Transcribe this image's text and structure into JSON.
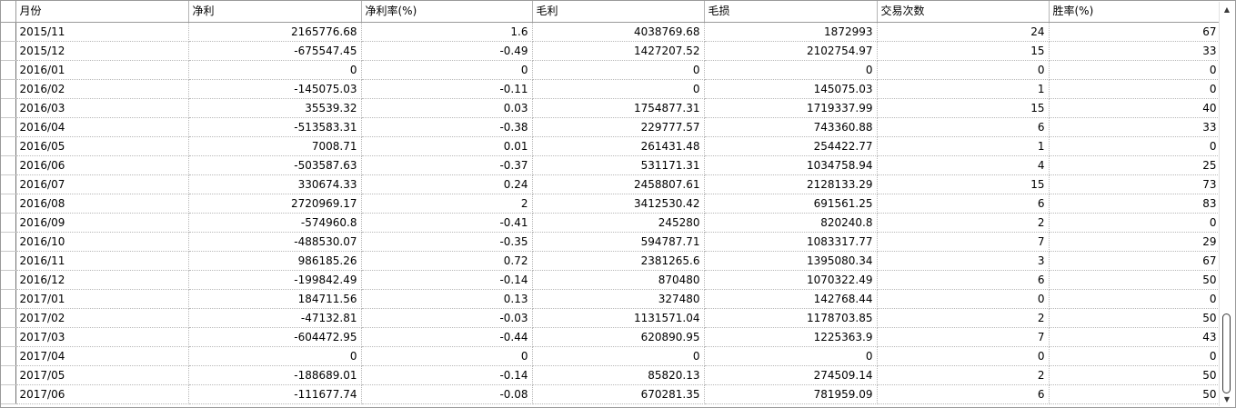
{
  "table": {
    "columns": [
      "月份",
      "净利",
      "净利率(%)",
      "毛利",
      "毛损",
      "交易次数",
      "胜率(%)"
    ],
    "rows": [
      [
        "2015/11",
        "2165776.68",
        "1.6",
        "4038769.68",
        "1872993",
        "24",
        "67"
      ],
      [
        "2015/12",
        "-675547.45",
        "-0.49",
        "1427207.52",
        "2102754.97",
        "15",
        "33"
      ],
      [
        "2016/01",
        "0",
        "0",
        "0",
        "0",
        "0",
        "0"
      ],
      [
        "2016/02",
        "-145075.03",
        "-0.11",
        "0",
        "145075.03",
        "1",
        "0"
      ],
      [
        "2016/03",
        "35539.32",
        "0.03",
        "1754877.31",
        "1719337.99",
        "15",
        "40"
      ],
      [
        "2016/04",
        "-513583.31",
        "-0.38",
        "229777.57",
        "743360.88",
        "6",
        "33"
      ],
      [
        "2016/05",
        "7008.71",
        "0.01",
        "261431.48",
        "254422.77",
        "1",
        "0"
      ],
      [
        "2016/06",
        "-503587.63",
        "-0.37",
        "531171.31",
        "1034758.94",
        "4",
        "25"
      ],
      [
        "2016/07",
        "330674.33",
        "0.24",
        "2458807.61",
        "2128133.29",
        "15",
        "73"
      ],
      [
        "2016/08",
        "2720969.17",
        "2",
        "3412530.42",
        "691561.25",
        "6",
        "83"
      ],
      [
        "2016/09",
        "-574960.8",
        "-0.41",
        "245280",
        "820240.8",
        "2",
        "0"
      ],
      [
        "2016/10",
        "-488530.07",
        "-0.35",
        "594787.71",
        "1083317.77",
        "7",
        "29"
      ],
      [
        "2016/11",
        "986185.26",
        "0.72",
        "2381265.6",
        "1395080.34",
        "3",
        "67"
      ],
      [
        "2016/12",
        "-199842.49",
        "-0.14",
        "870480",
        "1070322.49",
        "6",
        "50"
      ],
      [
        "2017/01",
        "184711.56",
        "0.13",
        "327480",
        "142768.44",
        "0",
        "0"
      ],
      [
        "2017/02",
        "-47132.81",
        "-0.03",
        "1131571.04",
        "1178703.85",
        "2",
        "50"
      ],
      [
        "2017/03",
        "-604472.95",
        "-0.44",
        "620890.95",
        "1225363.9",
        "7",
        "43"
      ],
      [
        "2017/04",
        "0",
        "0",
        "0",
        "0",
        "0",
        "0"
      ],
      [
        "2017/05",
        "-188689.01",
        "-0.14",
        "85820.13",
        "274509.14",
        "2",
        "50"
      ],
      [
        "2017/06",
        "-111677.74",
        "-0.08",
        "670281.35",
        "781959.09",
        "6",
        "50"
      ]
    ]
  },
  "scrollbar": {
    "up_icon": "▲",
    "down_icon": "▼",
    "position_fraction": 1.0
  },
  "colors": {
    "grid_line": "#b8b8b8",
    "header_border": "#9a9a9a",
    "text": "#000000"
  }
}
